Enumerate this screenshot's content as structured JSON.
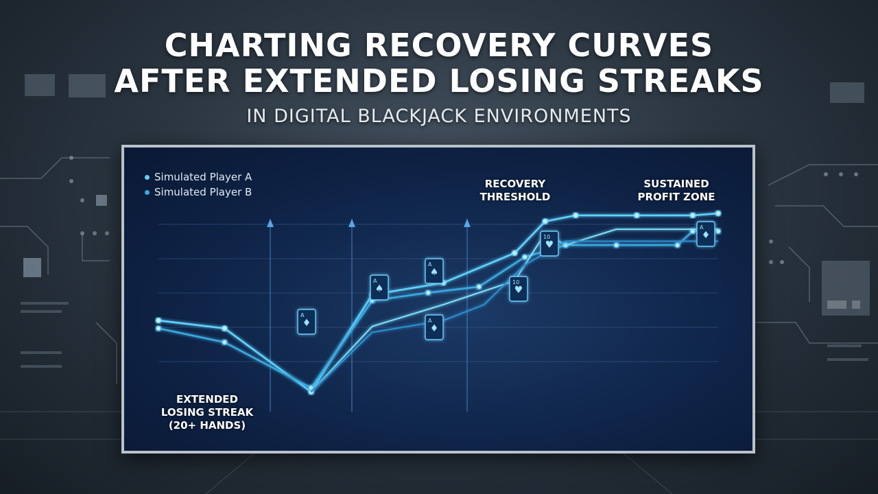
{
  "header": {
    "title_line1": "CHARTING RECOVERY CURVES",
    "title_line2": "AFTER EXTENDED LOSING STREAKS",
    "subtitle": "IN DIGITAL BLACKJACK ENVIRONMENTS"
  },
  "colors": {
    "background": "#2c3742",
    "panel": "#0f2448",
    "series_a": "#5fd3ff",
    "series_b": "#3aa9e0",
    "text": "#ffffff"
  },
  "chart_data": {
    "type": "line",
    "title": "",
    "xlabel": "",
    "ylabel": "",
    "grid": true,
    "legend_position": "top-left",
    "annotations": [
      {
        "id": "losing",
        "text": "EXTENDED\nLOSING STREAK\n(20+ HANDS)"
      },
      {
        "id": "threshold",
        "text": "RECOVERY\nTHRESHOLD"
      },
      {
        "id": "profit",
        "text": "SUSTAINED\nPROFIT ZONE"
      }
    ],
    "series": [
      {
        "name": "Simulated Player A",
        "color": "#5fd3ff",
        "points": [
          [
            0,
            4.6
          ],
          [
            1.3,
            4.2
          ],
          [
            3.0,
            1.0
          ],
          [
            4.2,
            5.9
          ],
          [
            5.6,
            6.5
          ],
          [
            7.0,
            8.0
          ],
          [
            7.6,
            9.6
          ],
          [
            8.2,
            9.9
          ],
          [
            9.4,
            9.9
          ],
          [
            10.5,
            9.9
          ],
          [
            11.0,
            10.0
          ]
        ]
      },
      {
        "name": "Simulated Player B",
        "color": "#3aa9e0",
        "points": [
          [
            0,
            4.2
          ],
          [
            1.3,
            3.5
          ],
          [
            3.0,
            1.2
          ],
          [
            4.2,
            5.6
          ],
          [
            5.3,
            6.0
          ],
          [
            6.3,
            6.3
          ],
          [
            7.2,
            7.8
          ],
          [
            8.0,
            8.4
          ],
          [
            9.0,
            8.4
          ],
          [
            10.2,
            8.4
          ],
          [
            10.5,
            9.1
          ],
          [
            11.0,
            9.1
          ]
        ]
      },
      {
        "name": "",
        "color": "#7fe2ff",
        "points": [
          [
            3.0,
            1.0
          ],
          [
            4.2,
            4.3
          ],
          [
            5.6,
            5.4
          ],
          [
            7.0,
            6.6
          ],
          [
            7.6,
            9.0
          ],
          [
            8.0,
            8.4
          ],
          [
            9.0,
            9.2
          ],
          [
            10.5,
            9.2
          ],
          [
            11.0,
            9.2
          ]
        ]
      },
      {
        "name": "",
        "color": "#2f8fd0",
        "points": [
          [
            3.0,
            1.0
          ],
          [
            4.2,
            4.0
          ],
          [
            5.6,
            4.6
          ],
          [
            6.4,
            5.4
          ],
          [
            7.2,
            7.4
          ],
          [
            8.0,
            8.6
          ],
          [
            9.0,
            8.6
          ],
          [
            10.0,
            8.6
          ],
          [
            11.0,
            8.6
          ]
        ]
      }
    ],
    "cards": [
      {
        "label": "A",
        "suit": "diamond"
      },
      {
        "label": "A",
        "suit": "spade"
      },
      {
        "label": "A",
        "suit": "spade"
      },
      {
        "label": "A",
        "suit": "diamond"
      },
      {
        "label": "10",
        "suit": "heart"
      },
      {
        "label": "10",
        "suit": "heart"
      },
      {
        "label": "A",
        "suit": "diamond"
      }
    ]
  }
}
